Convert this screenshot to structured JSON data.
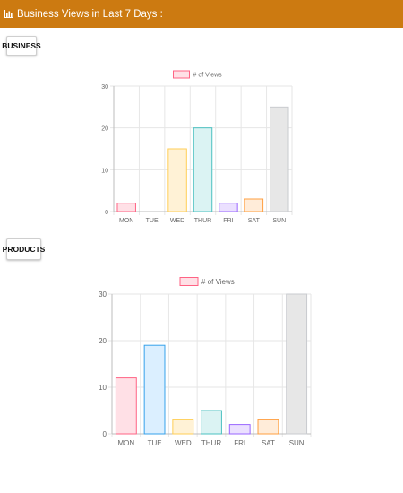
{
  "header": {
    "title": "Business Views in Last 7 Days :",
    "icon": "bar-chart-icon",
    "background_color": "#cc7a11"
  },
  "sections": {
    "business_label": "BUSINESS",
    "products_label": "PRODUCTS"
  },
  "chart_data": [
    {
      "type": "bar",
      "section": "BUSINESS",
      "categories": [
        "MON",
        "TUE",
        "WED",
        "THUR",
        "FRI",
        "SAT",
        "SUN"
      ],
      "series": [
        {
          "name": "# of Views",
          "values": [
            2,
            0,
            15,
            20,
            2,
            3,
            25
          ]
        }
      ],
      "ylim": [
        0,
        30
      ],
      "yticks": [
        0,
        10,
        20,
        30
      ],
      "grid": true,
      "legend": "top-center",
      "bar_fill_colors": [
        "#ffe0e6",
        "#dbefff",
        "#fff2d6",
        "#dbf3f3",
        "#ebe0ff",
        "#ffecd9",
        "#e7e7e7"
      ],
      "bar_border_colors": [
        "#ff6384",
        "#36a2eb",
        "#ffce56",
        "#4bc0c0",
        "#9966ff",
        "#ff9f40",
        "#c9cbcf"
      ],
      "legend_fill_color": "#ffe0e6",
      "legend_border_color": "#ff6384"
    },
    {
      "type": "bar",
      "section": "PRODUCTS",
      "categories": [
        "MON",
        "TUE",
        "WED",
        "THUR",
        "FRI",
        "SAT",
        "SUN"
      ],
      "series": [
        {
          "name": "# of Views",
          "values": [
            12,
            19,
            3,
            5,
            2,
            3,
            30
          ]
        }
      ],
      "ylim": [
        0,
        30
      ],
      "yticks": [
        0,
        10,
        20,
        30
      ],
      "grid": true,
      "legend": "top-center",
      "bar_fill_colors": [
        "#ffe0e6",
        "#dbefff",
        "#fff2d6",
        "#dbf3f3",
        "#ebe0ff",
        "#ffecd9",
        "#e7e7e7"
      ],
      "bar_border_colors": [
        "#ff6384",
        "#36a2eb",
        "#ffce56",
        "#4bc0c0",
        "#9966ff",
        "#ff9f40",
        "#c9cbcf"
      ],
      "legend_fill_color": "#ffe0e6",
      "legend_border_color": "#ff6384"
    }
  ]
}
